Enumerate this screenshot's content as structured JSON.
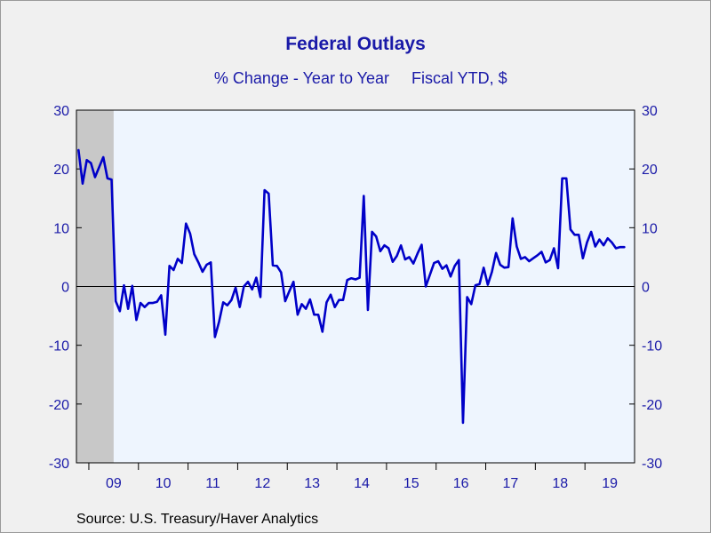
{
  "title": "Federal Outlays",
  "subtitle_left": "% Change - Year to Year",
  "subtitle_right": "Fiscal YTD, $",
  "source": "Source:  U.S. Treasury/Haver Analytics",
  "colors": {
    "background": "#f0f0f0",
    "plot_background": "#eef5fe",
    "line": "#0000c8",
    "text": "#1a1aa8",
    "recession": "#c8c8c8"
  },
  "chart_data": {
    "type": "line",
    "title": "Federal Outlays",
    "subtitle": "% Change - Year to Year    Fiscal YTD, $",
    "xlabel": "",
    "ylabel": "",
    "ylim": [
      -30,
      30
    ],
    "yticks": [
      -30,
      -20,
      -10,
      0,
      10,
      20,
      30
    ],
    "y_axis_both_sides": true,
    "zero_line": true,
    "grid": false,
    "x_range": [
      "2008-10",
      "2019-12"
    ],
    "year_labels": [
      "09",
      "10",
      "11",
      "12",
      "13",
      "14",
      "15",
      "16",
      "17",
      "18",
      "19"
    ],
    "shaded_periods": [
      {
        "label": "recession",
        "start": "2008-10",
        "end": "2009-06"
      }
    ],
    "series": [
      {
        "start": "2008-10",
        "frequency": "monthly",
        "values": [
          23.2,
          17.5,
          21.5,
          21.0,
          18.6,
          20.3,
          22.0,
          18.4,
          18.2,
          -2.5,
          -4.2,
          0.2,
          -3.8,
          0.1,
          -5.7,
          -2.8,
          -3.5,
          -2.8,
          -2.8,
          -2.6,
          -1.5,
          -8.2,
          3.5,
          2.8,
          4.7,
          4.0,
          10.7,
          9.0,
          5.5,
          4.1,
          2.5,
          3.7,
          4.1,
          -8.6,
          -6.0,
          -2.7,
          -3.2,
          -2.3,
          -0.2,
          -3.5,
          0.0,
          0.8,
          -0.5,
          1.5,
          -1.8,
          16.4,
          15.8,
          3.6,
          3.5,
          2.4,
          -2.5,
          -0.8,
          0.8,
          -4.8,
          -3.0,
          -3.8,
          -2.2,
          -4.8,
          -4.8,
          -7.7,
          -2.7,
          -1.4,
          -3.5,
          -2.3,
          -2.3,
          1.1,
          1.4,
          1.2,
          1.5,
          15.4,
          -4.0,
          9.3,
          8.5,
          6.0,
          7.0,
          6.5,
          4.2,
          5.2,
          7.0,
          4.6,
          5.0,
          3.9,
          5.6,
          7.1,
          0.0,
          2.0,
          4.0,
          4.3,
          3.0,
          3.6,
          1.7,
          3.5,
          4.5,
          -23.2,
          -1.8,
          -3.0,
          0.2,
          0.4,
          3.2,
          0.3,
          2.5,
          5.7,
          3.7,
          3.2,
          3.3,
          11.6,
          6.8,
          4.7,
          5.0,
          4.3,
          4.8,
          5.3,
          5.9,
          4.1,
          4.5,
          6.5,
          3.1,
          18.4,
          18.4,
          9.7,
          8.8,
          8.8,
          4.8,
          7.5,
          9.3,
          6.8,
          8.0,
          7.0,
          8.2,
          7.5,
          6.5,
          6.7,
          6.7
        ]
      }
    ]
  }
}
